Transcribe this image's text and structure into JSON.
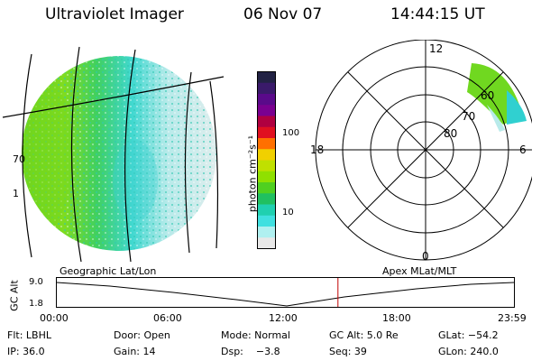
{
  "header": {
    "title": "Ultraviolet Imager",
    "date": "06 Nov 07",
    "time": "14:44:15 UT"
  },
  "colorbar": {
    "label": "photon cm⁻²s⁻¹",
    "ticks": [
      "100",
      "10"
    ],
    "colors": [
      "#222244",
      "#3a1a6a",
      "#5a0a8a",
      "#7a0090",
      "#b00040",
      "#e01020",
      "#ff7000",
      "#f0d000",
      "#c0e000",
      "#90e000",
      "#50d020",
      "#20c060",
      "#20d0b0",
      "#40e0e0",
      "#b0f0f0",
      "#e8e8e8"
    ]
  },
  "polar_plot": {
    "mlt_labels": [
      "12",
      "18",
      "6",
      "0"
    ],
    "lat_labels": [
      "60",
      "70",
      "80"
    ]
  },
  "timeline": {
    "left_label": "Geographic Lat/Lon",
    "right_label": "Apex MLat/MLT",
    "axis_title": "GC Alt",
    "y_ticks": [
      "9.0",
      "1.8"
    ],
    "x_ticks": [
      "00:00",
      "06:00",
      "12:00",
      "18:00",
      "23:59"
    ],
    "current_time_fraction": 0.615
  },
  "status": {
    "row1": [
      "Flt: LBHL",
      "Door: Open",
      "Mode: Normal",
      "GC Alt: 5.0 Re",
      "GLat: −54.2"
    ],
    "row2": [
      "IP: 36.0",
      "Gain: 14",
      "Dsp:    −3.8",
      "Seq: 39",
      "GLon: 240.0"
    ]
  },
  "edge_labels": [
    "70",
    "1"
  ]
}
